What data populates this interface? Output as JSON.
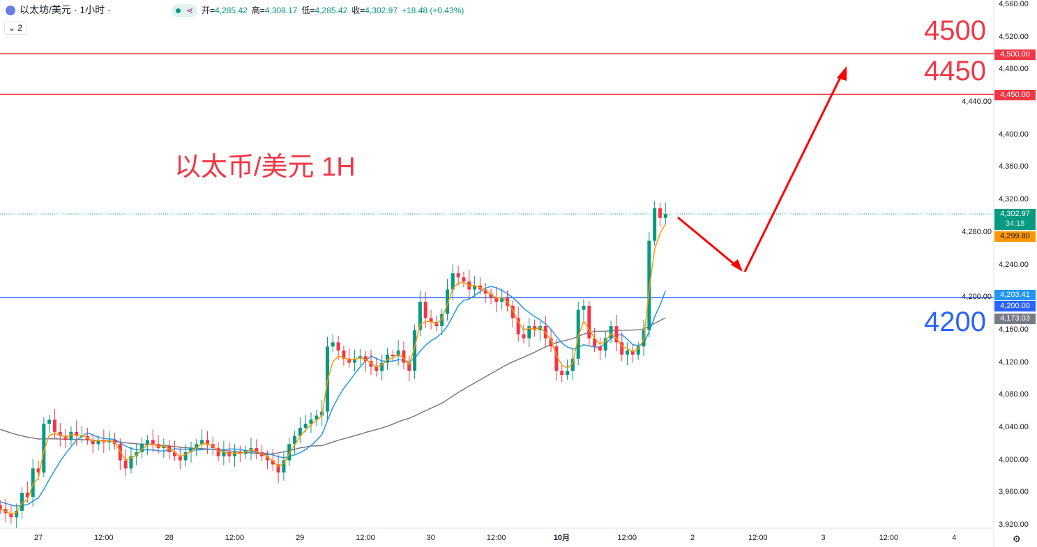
{
  "header": {
    "symbol": "以太坊/美元 · 1小时 ·",
    "open_label": "开=",
    "open": "4,285.42",
    "high_label": "高=",
    "high": "4,308.17",
    "low_label": "低=",
    "low": "4,285.42",
    "close_label": "收=",
    "close": "4,302.97",
    "change": "+18.48 (+0.43%)",
    "indicator_count": "2"
  },
  "annotations": {
    "title": "以太币/美元 1H",
    "level_4500": "4500",
    "level_4450": "4450",
    "level_4200": "4200"
  },
  "price_tags": {
    "last": "4,302.97",
    "countdown": "34:18",
    "ema_fast": "4,299.80",
    "ma_mid": "4,203.41",
    "line_4200": "4,200.00",
    "ma_slow": "4,173.03",
    "line_4500": "4,500.00",
    "line_4450": "4,450.00"
  },
  "colors": {
    "up": "#089981",
    "down": "#f23645",
    "fast": "#ff9800",
    "mid": "#2196f3",
    "slow": "#787b86",
    "hline_red": "#f23645",
    "hline_blue": "#2962ff"
  },
  "chart_data": {
    "type": "candlestick",
    "title": "以太坊/美元 · 1小时",
    "ylim": [
      3920,
      4560
    ],
    "y_ticks": [
      "4,560.00",
      "4,520.00",
      "4,480.00",
      "4,440.00",
      "4,400.00",
      "4,360.00",
      "4,320.00",
      "4,280.00",
      "4,240.00",
      "4,200.00",
      "4,160.00",
      "4,120.00",
      "4,080.00",
      "4,040.00",
      "4,000.00",
      "3,960.00",
      "3,920.00"
    ],
    "x_ticks": [
      "27",
      "12:00",
      "28",
      "12:00",
      "29",
      "12:00",
      "30",
      "12:00",
      "10月",
      "12:00",
      "2",
      "12:00",
      "3",
      "12:00",
      "4"
    ],
    "horizontal_lines": [
      4500,
      4450,
      4200
    ],
    "closes": [
      3940,
      3935,
      3930,
      3938,
      3960,
      3955,
      3990,
      3985,
      4045,
      4050,
      4035,
      4030,
      4025,
      4035,
      4030,
      4030,
      4025,
      4020,
      4025,
      4022,
      4025,
      4020,
      4000,
      3990,
      4005,
      4010,
      4020,
      4025,
      4020,
      4015,
      4018,
      4010,
      4005,
      4000,
      4010,
      4015,
      4020,
      4025,
      4020,
      4015,
      4005,
      4010,
      4005,
      4010,
      4008,
      4012,
      4015,
      4010,
      4005,
      4000,
      3995,
      3985,
      4000,
      4020,
      4030,
      4040,
      4045,
      4050,
      4055,
      4060,
      4140,
      4145,
      4135,
      4125,
      4120,
      4125,
      4128,
      4122,
      4115,
      4110,
      4120,
      4130,
      4128,
      4135,
      4120,
      4110,
      4160,
      4195,
      4175,
      4170,
      4165,
      4180,
      4210,
      4230,
      4225,
      4220,
      4210,
      4215,
      4210,
      4205,
      4200,
      4195,
      4200,
      4190,
      4175,
      4155,
      4150,
      4165,
      4160,
      4165,
      4150,
      4140,
      4110,
      4105,
      4110,
      4125,
      4185,
      4190,
      4150,
      4140,
      4135,
      4150,
      4165,
      4145,
      4130,
      4135,
      4130,
      4140,
      4160,
      4270,
      4310,
      4298,
      4303
    ],
    "last_values": {
      "close": 4302.97,
      "ema_fast": 4299.8,
      "ma_mid": 4203.41,
      "ma_slow": 4173.03
    }
  }
}
